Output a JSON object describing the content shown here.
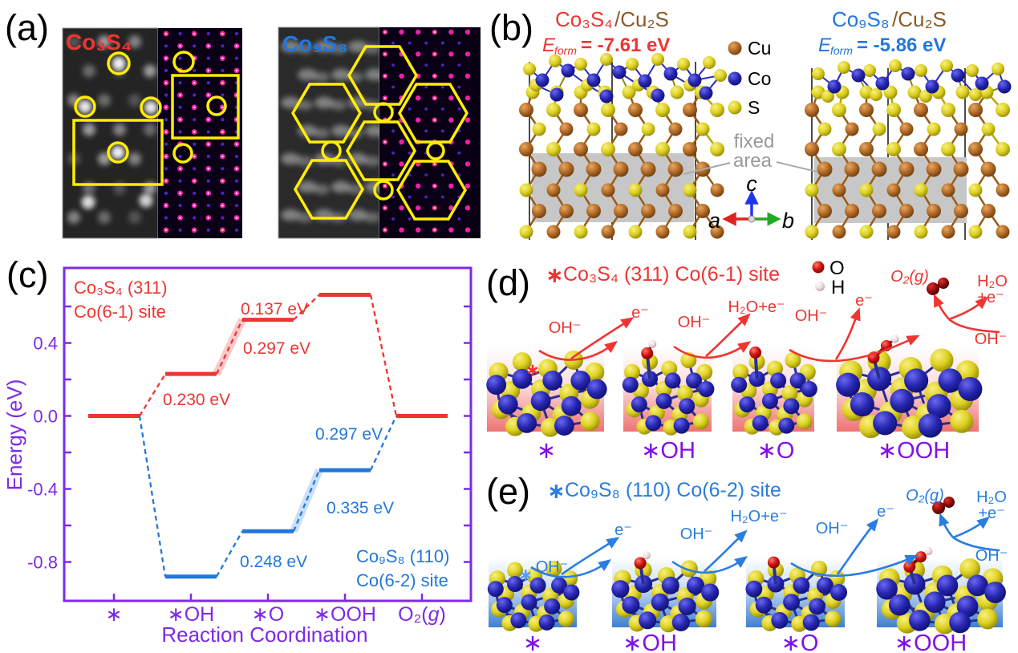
{
  "colors": {
    "red": "#ee3532",
    "blue": "#2277dd",
    "arrow_blue": "#2a7de1",
    "purple_axis": "#7d2ae8",
    "purple_state": "#8010e8",
    "brown": "#8a5a28",
    "overlay_yellow": "#ffee00",
    "gray_label": "#9a9a9a",
    "cu_sphere": "#b06a28",
    "co_sphere": "#2626b0",
    "s_sphere": "#ddd020",
    "o_sphere": "#cc1111",
    "h_sphere": "#e9d9d9"
  },
  "figure": {
    "panel_a": {
      "label": "(a)",
      "left_material": "Co₃S₄",
      "right_material": "Co₉S₈"
    },
    "panel_b": {
      "label": "(b)",
      "left": {
        "compound": "Co₃S₄",
        "substrate": "/Cu₂S",
        "eform_symbol": "E",
        "eform_sub": "form",
        "eform_value": "= -7.61 eV",
        "eform_eV": -7.61
      },
      "right": {
        "compound": "Co₉S₈",
        "substrate": "/Cu₂S",
        "eform_symbol": "E",
        "eform_sub": "form",
        "eform_value": "= -5.86 eV",
        "eform_eV": -5.86
      },
      "legend": [
        {
          "name": "Cu"
        },
        {
          "name": "Co"
        },
        {
          "name": "S"
        }
      ],
      "fixed_area_line1": "fixed",
      "fixed_area_line2": "area",
      "axis_labels": {
        "a": "a",
        "b": "b",
        "c": "c"
      }
    },
    "panel_c": {
      "label": "(c)"
    },
    "panel_d": {
      "label": "(d)",
      "site_marker": "∗",
      "title": "Co₃S₄ (311) Co(6-1) site",
      "adsorbate_legend": [
        {
          "symbol": "O"
        },
        {
          "symbol": "H"
        }
      ],
      "flow": {
        "oh1": "OH⁻",
        "e1": "e⁻",
        "oh2": "OH⁻",
        "h2oe": "H₂O+e⁻",
        "oh3": "OH⁻",
        "e2": "e⁻",
        "o2": "O₂(g)",
        "h2o": "H₂O",
        "pe": "+e⁻",
        "oh4": "OH⁻"
      },
      "states": [
        "∗",
        "∗OH",
        "∗O",
        "∗OOH"
      ]
    },
    "panel_e": {
      "label": "(e)",
      "site_marker": "∗",
      "title": "Co₉S₈ (110) Co(6-2) site",
      "flow": {
        "oh1": "OH⁻",
        "e1": "e⁻",
        "oh2": "OH⁻",
        "h2oe": "H₂O+e⁻",
        "oh3": "OH⁻",
        "e2": "e⁻",
        "o2": "O₂(g)",
        "h2o": "H₂O",
        "pe": "+e⁻",
        "oh4": "OH⁻"
      },
      "states": [
        "∗",
        "∗OH",
        "∗O",
        "∗OOH"
      ]
    }
  },
  "chart_data": {
    "type": "line",
    "title": "",
    "xlabel": "Reaction Coordination",
    "ylabel": "Energy (eV)",
    "categories": [
      "∗",
      "∗OH",
      "∗O",
      "∗OOH",
      "O₂(g)"
    ],
    "o2_parts": [
      "O₂(",
      "g",
      ")"
    ],
    "yticks": [
      0.4,
      0.0,
      -0.4,
      -0.8
    ],
    "minor_ticks": [
      0.6,
      0.4,
      0.2,
      0.0,
      -0.2,
      -0.4,
      -0.6,
      -0.8
    ],
    "ylim": [
      -1.02,
      0.81
    ],
    "grid": false,
    "legend_position": "annotations-inside",
    "series": [
      {
        "name": "Co₃S₄ (311) Co(6-1) site",
        "name_line1": "Co₃S₄ (311)",
        "name_line2": "Co(6-1) site",
        "color": "#ee3532",
        "values": [
          0.0,
          0.23,
          0.527,
          0.664,
          0.0
        ],
        "step_labels": [
          "0.230 eV",
          "0.297 eV",
          "0.137 eV"
        ],
        "step_values_eV": [
          0.23,
          0.297,
          0.137
        ],
        "highlight_connector": 1
      },
      {
        "name": "Co₉S₈ (110) Co(6-2) site",
        "name_line1": "Co₉S₈ (110)",
        "name_line2": "Co(6-2) site",
        "color": "#2277dd",
        "values": [
          0.0,
          -0.88,
          -0.632,
          -0.297,
          0.0
        ],
        "step_labels": [
          "0.248 eV",
          "0.335 eV",
          "0.297 eV"
        ],
        "step_values_eV": [
          0.248,
          0.335,
          0.297
        ],
        "highlight_connector": 2
      }
    ]
  }
}
